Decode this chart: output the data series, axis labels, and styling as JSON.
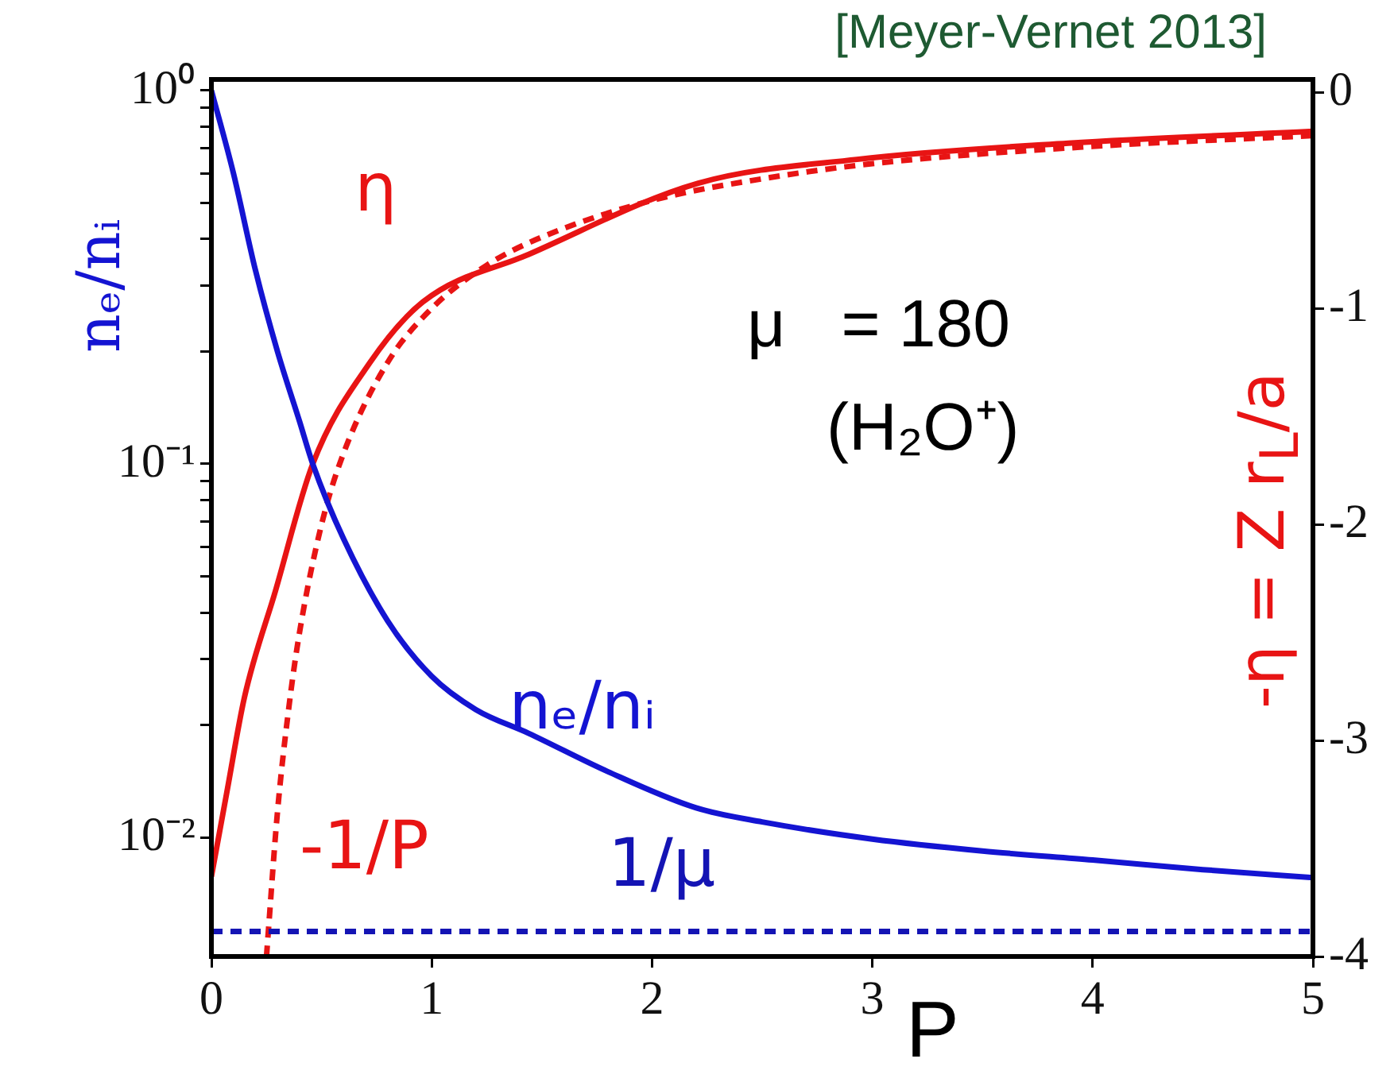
{
  "chart_data": {
    "type": "line",
    "xlabel": "P",
    "ylabel": "nₑ/nᵢ",
    "y2label": "-η = Z r$_{L}$/a",
    "annotations": [
      "[Meyer-Vernet 2013]",
      "μ   = 180",
      "(H₂O⁺)"
    ],
    "xlim": [
      0,
      5
    ],
    "xticks": [
      0,
      1,
      2,
      3,
      4,
      5
    ],
    "ylim": [
      0.0048,
      1.07
    ],
    "yticks": [
      {
        "value": 0.01,
        "label": "10⁻²"
      },
      {
        "value": 0.02,
        "label": null
      },
      {
        "value": 0.03,
        "label": null
      },
      {
        "value": 0.04,
        "label": null
      },
      {
        "value": 0.05,
        "label": null
      },
      {
        "value": 0.06,
        "label": null
      },
      {
        "value": 0.07,
        "label": null
      },
      {
        "value": 0.08,
        "label": null
      },
      {
        "value": 0.09,
        "label": null
      },
      {
        "value": 0.1,
        "label": "10⁻¹"
      },
      {
        "value": 0.2,
        "label": null
      },
      {
        "value": 0.3,
        "label": null
      },
      {
        "value": 0.4,
        "label": null
      },
      {
        "value": 0.5,
        "label": null
      },
      {
        "value": 0.6,
        "label": null
      },
      {
        "value": 0.7,
        "label": null
      },
      {
        "value": 0.8,
        "label": null
      },
      {
        "value": 0.9,
        "label": null
      },
      {
        "value": 1,
        "label": "10⁰"
      }
    ],
    "log": "y",
    "y2lim": [
      -4,
      0.06
    ],
    "y2ticks": [
      0,
      -1,
      -2,
      -3,
      -4
    ],
    "grid": false,
    "legend": false,
    "marker": "none",
    "series": [
      {
        "name": "nₑ/nᵢ",
        "color": "#1414d2",
        "line_style": "solid",
        "x": [
          0,
          0.1,
          0.2,
          0.3,
          0.4,
          0.46,
          0.6,
          0.8,
          1,
          1.2,
          1.44,
          1.8,
          2.2,
          2.5,
          3,
          3.5,
          4,
          4.5,
          5
        ],
        "values": [
          1,
          0.6,
          0.33,
          0.2,
          0.13,
          0.1,
          0.063,
          0.038,
          0.027,
          0.022,
          0.019,
          0.015,
          0.012,
          0.011,
          0.0099,
          0.0092,
          0.0087,
          0.0082,
          0.0078
        ]
      },
      {
        "name": "1/μ",
        "color": "#1414b4",
        "line_style": "dashed",
        "x": [
          0,
          5
        ],
        "values": [
          0.0056,
          0.0056
        ]
      },
      {
        "name": "η",
        "color": "#e81414",
        "line_style": "solid",
        "axis": "y2",
        "x": [
          0,
          0.07,
          0.15,
          0.29,
          0.46,
          0.72,
          0.96,
          1.44,
          2.21,
          2.93,
          3.89,
          5
        ],
        "values": [
          -3.63,
          -3.24,
          -2.8,
          -2.31,
          -1.72,
          -1.25,
          -0.97,
          -0.75,
          -0.42,
          -0.31,
          -0.235,
          -0.18
        ]
      },
      {
        "name": "-1/P",
        "color": "#e81414",
        "line_style": "dashed",
        "axis": "y2",
        "x": [
          0.25,
          0.3,
          0.35,
          0.4,
          0.5,
          0.6,
          0.8,
          1,
          1.25,
          1.5,
          2,
          2.5,
          3,
          4,
          5
        ],
        "values": [
          -4,
          -3.33,
          -2.86,
          -2.5,
          -2,
          -1.67,
          -1.25,
          -1,
          -0.8,
          -0.67,
          -0.5,
          -0.4,
          -0.33,
          -0.25,
          -0.2
        ]
      }
    ]
  }
}
